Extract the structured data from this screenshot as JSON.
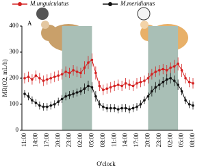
{
  "chart_data": {
    "type": "line",
    "panel_label": "A",
    "ylabel": "MR(O2, mL/h)",
    "xlabel": "O'clock",
    "categories": [
      "11:00",
      null,
      null,
      "14:00",
      null,
      null,
      "17:00",
      null,
      null,
      "20:00",
      null,
      null,
      "23:00",
      null,
      null,
      "02:00",
      null,
      null,
      "05:00",
      null,
      null,
      "08:00",
      null,
      null,
      "11:00",
      null,
      null,
      "14:00",
      null,
      null,
      "17:00",
      null,
      null,
      "20:00",
      null,
      null,
      "23:00",
      null,
      null,
      "02:00",
      null,
      null,
      "05:00",
      null,
      null,
      "08:00"
    ],
    "series": [
      {
        "name": "M.unguiculatus",
        "color": "#d42020",
        "values": [
          200,
          205,
          195,
          210,
          200,
          190,
          195,
          200,
          205,
          210,
          215,
          225,
          220,
          230,
          225,
          220,
          240,
          260,
          270,
          220,
          170,
          155,
          160,
          165,
          170,
          175,
          170,
          180,
          175,
          170,
          180,
          185,
          190,
          200,
          215,
          225,
          230,
          235,
          230,
          240,
          245,
          255,
          230,
          200,
          185,
          180
        ],
        "errors": [
          20,
          20,
          20,
          20,
          20,
          20,
          20,
          20,
          20,
          20,
          20,
          20,
          20,
          20,
          20,
          20,
          25,
          25,
          25,
          25,
          20,
          20,
          20,
          20,
          20,
          20,
          20,
          20,
          20,
          20,
          20,
          20,
          20,
          20,
          20,
          20,
          20,
          20,
          20,
          20,
          25,
          25,
          25,
          20,
          20,
          20
        ]
      },
      {
        "name": "M.meridianus",
        "color": "#111111",
        "values": [
          140,
          130,
          115,
          105,
          95,
          90,
          90,
          95,
          100,
          110,
          120,
          130,
          135,
          140,
          145,
          150,
          160,
          170,
          165,
          130,
          100,
          90,
          85,
          85,
          85,
          80,
          85,
          85,
          80,
          85,
          90,
          100,
          115,
          130,
          150,
          165,
          175,
          185,
          195,
          200,
          190,
          175,
          150,
          115,
          100,
          95
        ],
        "errors": [
          15,
          15,
          15,
          15,
          15,
          15,
          15,
          15,
          15,
          15,
          15,
          15,
          15,
          15,
          15,
          15,
          20,
          20,
          20,
          20,
          15,
          15,
          15,
          15,
          15,
          15,
          15,
          15,
          15,
          15,
          15,
          15,
          15,
          15,
          20,
          20,
          20,
          20,
          20,
          20,
          20,
          20,
          15,
          15,
          15,
          15
        ]
      }
    ],
    "shaded_ranges": [
      [
        10,
        18
      ],
      [
        33,
        41
      ]
    ],
    "shade_color": "#a9bfb6",
    "ylim": [
      0,
      400
    ],
    "yticks": [
      0,
      100,
      200,
      300,
      400
    ]
  }
}
